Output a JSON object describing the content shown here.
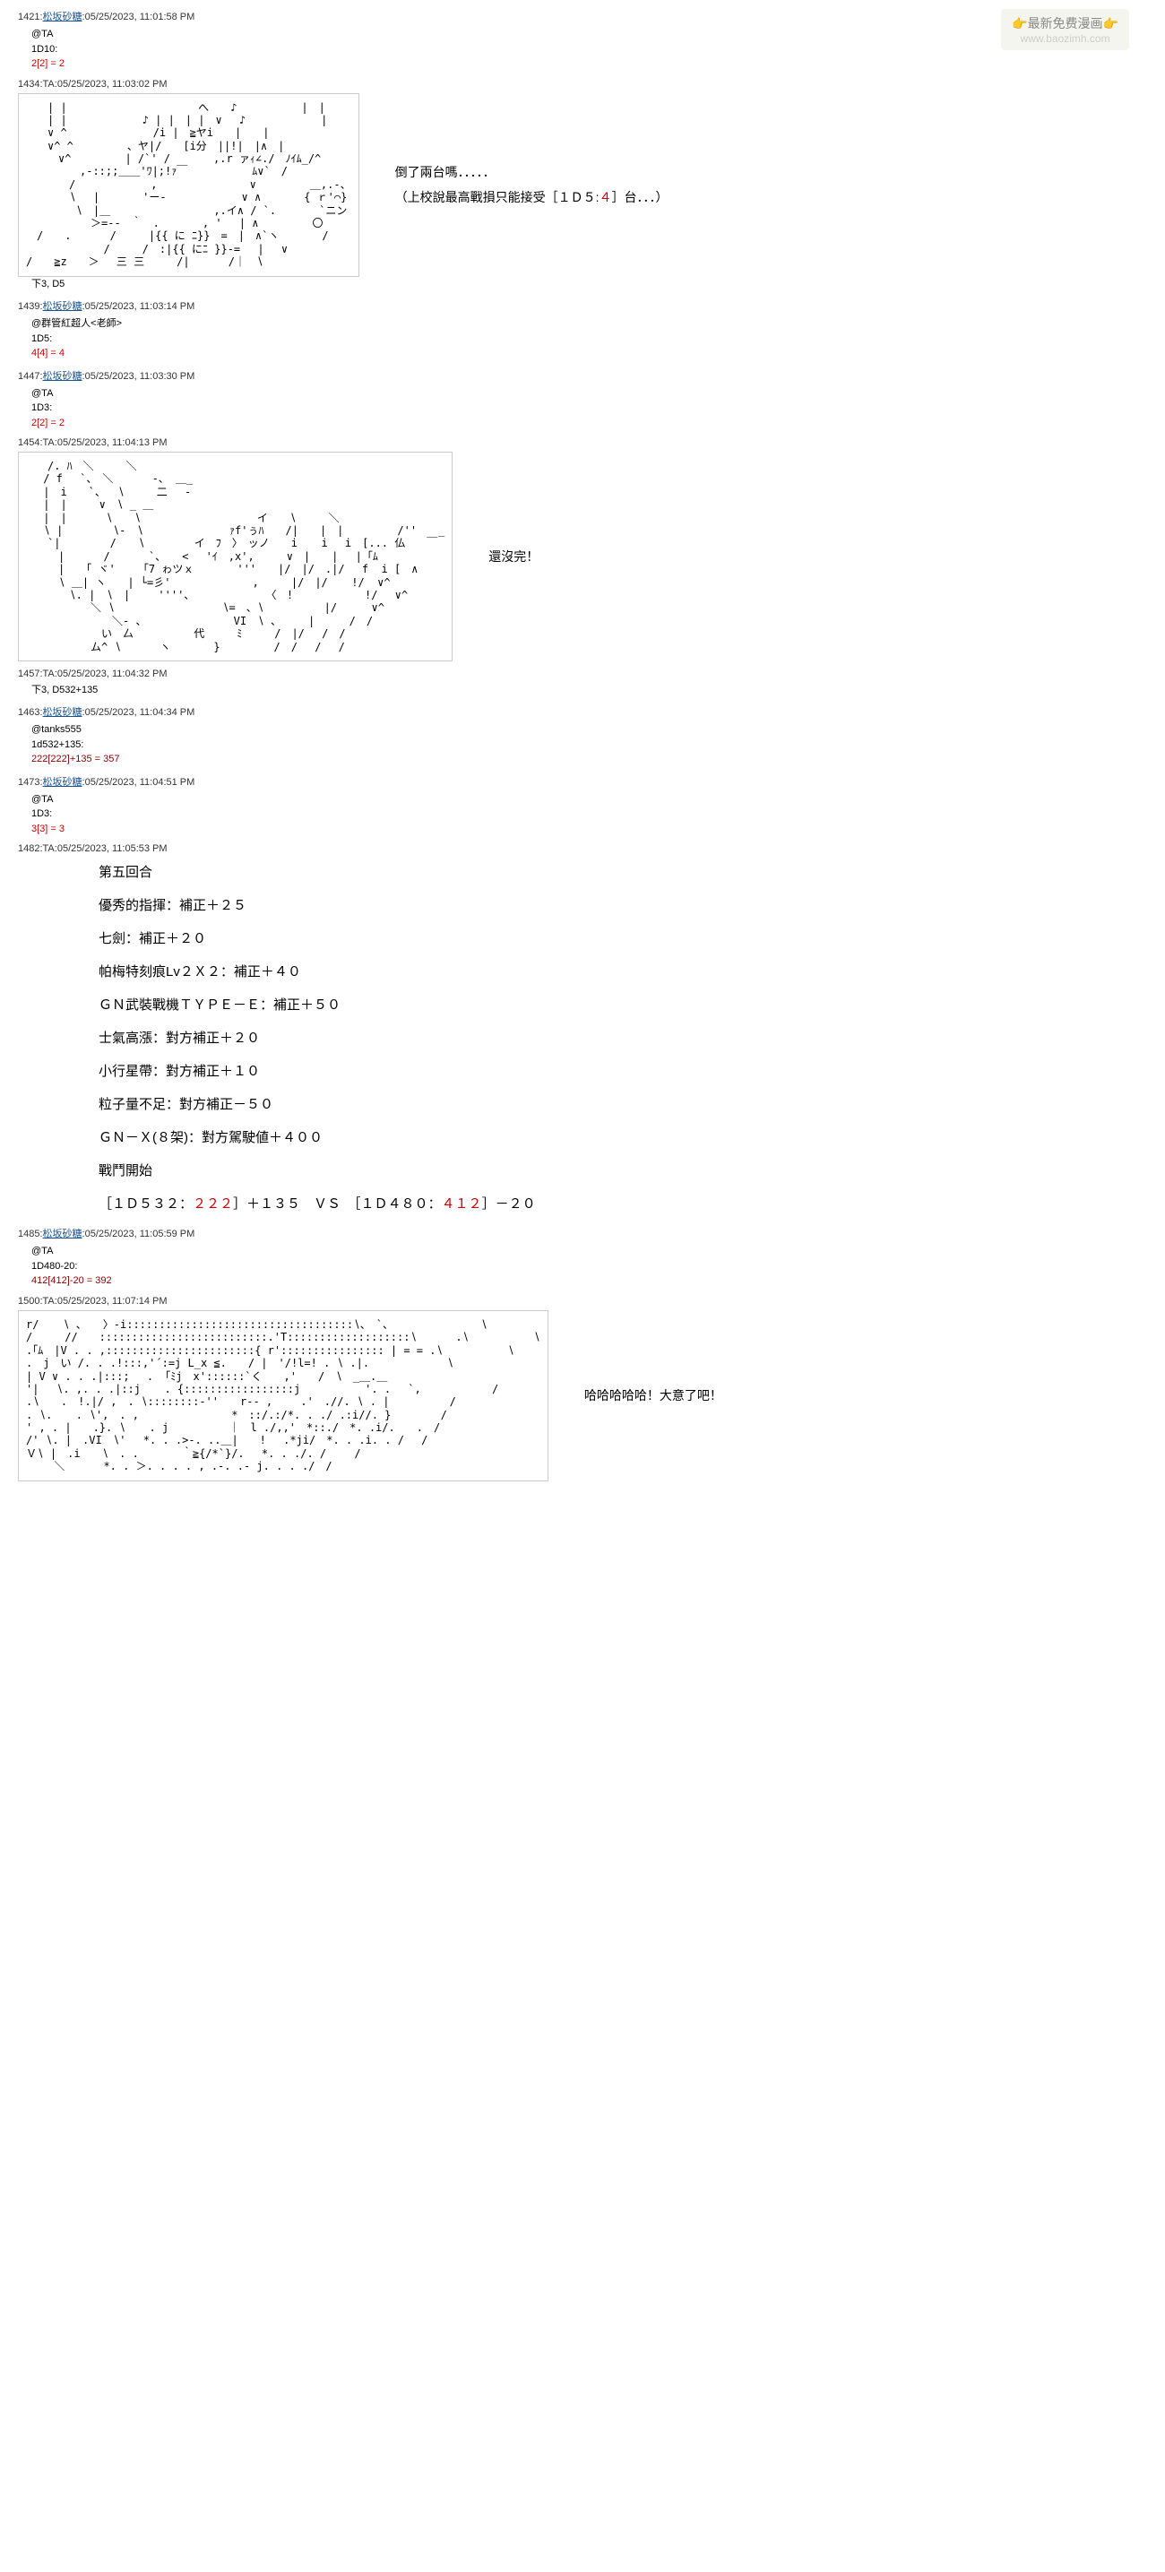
{
  "watermark": {
    "line1_prefix": "👉",
    "line1_text": "最新免费漫画",
    "line1_suffix": "👉",
    "line2": "www.baozimh.com"
  },
  "posts": [
    {
      "id": "1421",
      "author": "松坂砂糖",
      "author_linked": true,
      "time": "05/25/2023, 11:01:58 PM",
      "body": [
        {
          "t": "plain",
          "v": "@TA"
        },
        {
          "t": "plain",
          "v": "1D10:"
        },
        {
          "t": "red",
          "v": "2[2] = 2"
        }
      ]
    },
    {
      "id": "1434",
      "author": "TA",
      "author_linked": false,
      "time": "05/25/2023, 11:03:02 PM",
      "ascii": "a1",
      "side": [
        "倒了兩台嗎．．．．．",
        "（上校說最高戰損只能接受［１Ｄ５:４］台．．．）"
      ],
      "side_red": [
        "４"
      ],
      "below": "下3, D5"
    },
    {
      "id": "1439",
      "author": "松坂砂糖",
      "author_linked": true,
      "time": "05/25/2023, 11:03:14 PM",
      "body": [
        {
          "t": "plain",
          "v": "@群管紅超人<老師>"
        },
        {
          "t": "plain",
          "v": "1D5:"
        },
        {
          "t": "red",
          "v": "4[4] = 4"
        }
      ]
    },
    {
      "id": "1447",
      "author": "松坂砂糖",
      "author_linked": true,
      "time": "05/25/2023, 11:03:30 PM",
      "body": [
        {
          "t": "plain",
          "v": "@TA"
        },
        {
          "t": "plain",
          "v": "1D3:"
        },
        {
          "t": "red",
          "v": "2[2] = 2"
        }
      ]
    },
    {
      "id": "1454",
      "author": "TA",
      "author_linked": false,
      "time": "05/25/2023, 11:04:13 PM",
      "ascii": "a2",
      "side": [
        "還沒完！"
      ]
    },
    {
      "id": "1457",
      "author": "TA",
      "author_linked": false,
      "time": "05/25/2023, 11:04:32 PM",
      "body": [
        {
          "t": "plain",
          "v": "下3, D532+135"
        }
      ]
    },
    {
      "id": "1463",
      "author": "松坂砂糖",
      "author_linked": true,
      "time": "05/25/2023, 11:04:34 PM",
      "body": [
        {
          "t": "plain",
          "v": "@tanks555"
        },
        {
          "t": "plain",
          "v": "1d532+135:"
        },
        {
          "t": "maroon",
          "v": "222[222]+135 = 357"
        }
      ]
    },
    {
      "id": "1473",
      "author": "松坂砂糖",
      "author_linked": true,
      "time": "05/25/2023, 11:04:51 PM",
      "body": [
        {
          "t": "plain",
          "v": "@TA"
        },
        {
          "t": "plain",
          "v": "1D3:"
        },
        {
          "t": "red",
          "v": "3[3] = 3"
        }
      ]
    },
    {
      "id": "1482",
      "author": "TA",
      "author_linked": false,
      "time": "05/25/2023, 11:05:53 PM",
      "battle": true
    },
    {
      "id": "1485",
      "author": "松坂砂糖",
      "author_linked": true,
      "time": "05/25/2023, 11:05:59 PM",
      "body": [
        {
          "t": "plain",
          "v": "@TA"
        },
        {
          "t": "plain",
          "v": "1D480-20:"
        },
        {
          "t": "maroon",
          "v": "412[412]-20 = 392"
        }
      ]
    },
    {
      "id": "1500",
      "author": "TA",
      "author_linked": false,
      "time": "05/25/2023, 11:07:14 PM",
      "ascii": "a3",
      "side": [
        "哈哈哈哈哈！大意了吧！"
      ]
    }
  ],
  "battle": {
    "lines": [
      "第五回合",
      "優秀的指揮：補正＋２５",
      "七劍：補正＋２０",
      "帕梅特刻痕Lv２Ｘ２：補正＋４０",
      "ＧＮ武裝戰機ＴＹＰＥ－Ｅ：補正＋５０",
      "士氣高漲：對方補正＋２０",
      "小行星帶：對方補正＋１０",
      "粒子量不足：對方補正－５０",
      "ＧＮ－Ｘ(８架)：對方駕駛値＋４００",
      "戰鬥開始"
    ],
    "final_prefix": "［１Ｄ５３２：",
    "final_v1": "２２２",
    "final_mid": "］＋１３５　ＶＳ　［１Ｄ４８０：",
    "final_v2": "４１２",
    "final_suffix": "］－２０"
  },
  "ascii_art": {
    "a1": "　　| |　　 　　　　　　　　　 へ　　♪　　　　　　|　|\n　　| |　　　　　　　♪ | |　| |　∨　 ♪　　　　　　　|\n　　∨ ^　　　　　　　　/i |　≧ヤi　　|　　|\n　　∨^ ^　　　　　、ヤ|/　　[i分　||!|　|∧　|\n　　　∨^　　　　　| /`' /　　　　,.r ァｨ∠./　ﾉｲﾑ_/^\n　　　　　,-::;;＿＿'ﾜ|;!ｧ￣　　　　　　ﾑ∨`　/\n　　　　/　　　　　　　,　　　　　　　　 ∨　　　　　＿,.-、\n　　　　∖ 　|　　　　'ー-　　　　　　　∨ ∧　　　　{ ｒ'⌒}\n　　　 　∖　|＿　　　　　 　　　　,.イ∧ / `.　　　　`ニン\n　　　　　　＞=--　｀　.　　　　, '　 | ∧　　　　　〇\n　/　　.　 　　/　　　|{{ に ﾆ}}　=　|　∧`ヽ　　　　/\n 　　　　　　 /　　　/　:|{{ にﾆ }}-=　 | 　∨\n/　　≧z　　＞　 三 三　　　/|　　　 /｜　∖",
    "a2": "　　/. ﾊ　＼　　　＼\n　 / f　 `、　＼ 　　　-、 ＿_\n　 |　i　　`、　 ∖　　　二　 -\n　 |　|　　　∨　∖ _ ＿\n　 |　|　　 　∖　　∖　　　 　 　　　 　　イ　　∖　　　＼\n　 ∖ | 　　　　∖-　∖　　　　　　　　ｧf'ぅﾊ　　/|　　|　|　　　　　/''　　_\n　　`|　　 　　/　　∖ 　　　　イ　ﾌ　〉　ッノ　　i 　 i　 i　[... 仏　　￣\n　　　|　　　 /　　　 `、　　< 　'ｲ　,x',　　　∨　|　　|　 |「ﾑ\n　　　|　　「 ヾ'　 　「7 ゎツｘ　　　　'''　　|/　|/　.|/　 f  i [　∧\n　　　∖ ＿| ヽ　　| └=彡' 　　　　　　　,　　　|/　|/ 　 !/  ∨^\n　　　　∖. |　∖　|　　 ''''、　　　　 　　　〈　！　 　　　　 !/ 　∨^\n　　　　　　＼ ∖　　　　　　　　　　∖=　、∖　　　　　 |/ 　 　∨^\n　　　　　　　　＼- 、　　　　　　　　 VI　∖ 、　　　|　 　 /　/\n　　　　　　　い　厶 　　　　　代　　　ﾐ　　　/　|/　 /　/\n　　　　　　ム^ ∖　　　 ヽ　　　　}　　　　　/　/　 / 　/",
    "a3": "r/ 　 ∖ 、　　〉-i:::::::::::::::::::::::::::::::::::∖、　`、　　 　　　　　　∖\n/　　　//　　::::::::::::::::::::::::::.'T:::::::::::::::::::∖ 　　　.∖　　　　　　∖\n.｢ﾑ　|V . . ,:::::::::::::::::::::::{ r':::::::::::::::: | = = .∖　　　　　　∖\n.　j　い /. . .!:::,'´:=j L_x ≦.　　/ |　'/!l=! . ∖ .|. 　　　 　　　∖\n| V ∨ . . .|:::;　 . 「ﾐj　x'::::::`く　　,'　　/　∖　_＿.＿\n'| 　∖. ,. . .|::j 　 . {:::::::::::::::::j　　　　　　'. . 　`,　　　　　　 /\n.∖　　.　!.|/ ,　. ∖::::::::-''　　r-- ,　　 .'　.//. ∖ . | 　　　　　/\n. ∖. 　 . ∖',　. ,　 　　　　　　　*　::/.:/*. . ./ .:i//. } 　　　　/\n' , . |　　.}. ∖ 　 . j 　　　　　｜　l ./,,'　*::./　*. .i/.　　.　/\n/' ∖. |　.VI　∖' 　*. . .>-. ..＿|　　! 　.*ji/　*. . .i. . /　 /\nＶ∖ |　.i　　∖　. .　　　　｀≧{/*`}/. 　*. . ./. / 　　/\n　　 ＼　　　 *. . ＞. . . . , .-. .- j. . . ./　/"
  },
  "style": {
    "bg": "#ffffff",
    "text": "#000000",
    "link": "#1a5490",
    "red": "#cc0000",
    "maroon": "#8b0000",
    "watermark_bg": "#f5f5f0",
    "emoji": "#f0a020"
  }
}
